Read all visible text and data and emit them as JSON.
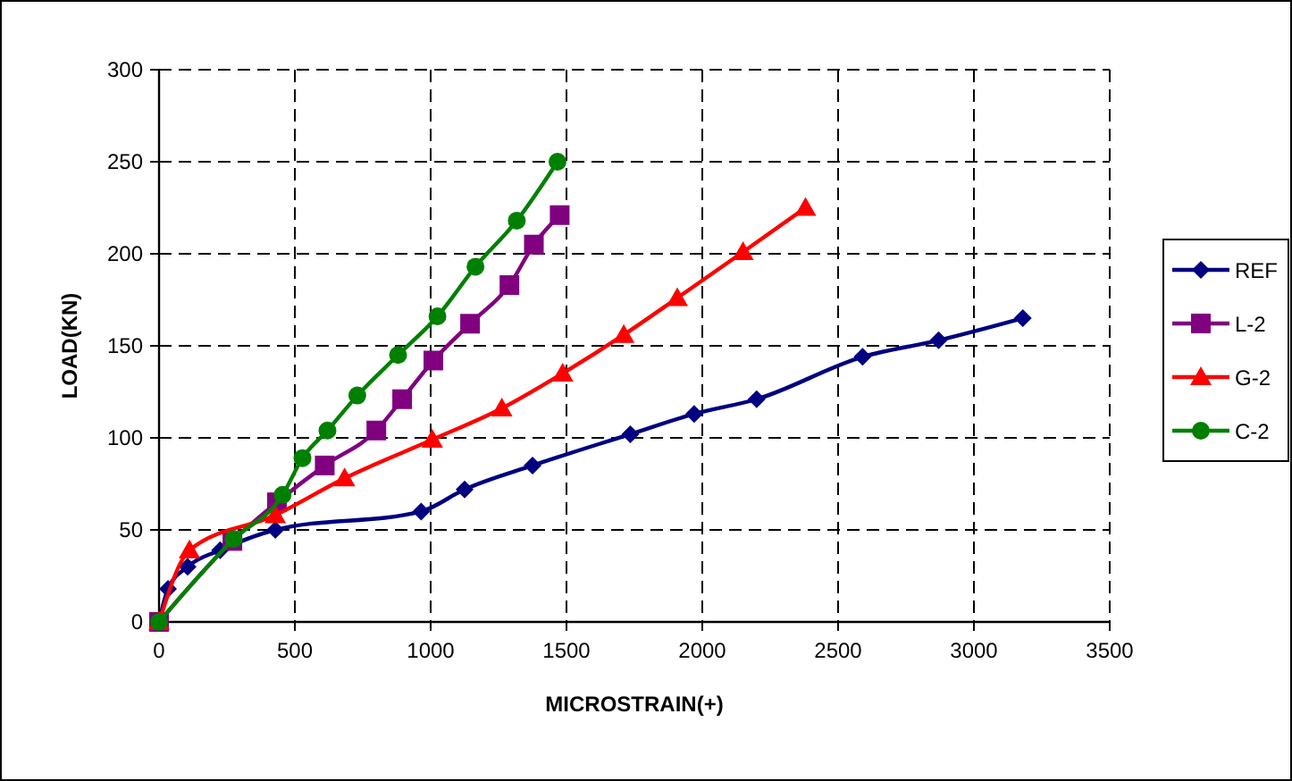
{
  "chart_data": {
    "type": "line",
    "xlabel": "MICROSTRAIN(+)",
    "ylabel": "LOAD(KN)",
    "xlim": [
      0,
      3500
    ],
    "xticks": [
      0,
      500,
      1000,
      1500,
      2000,
      2500,
      3000,
      3500
    ],
    "ylim": [
      0,
      300
    ],
    "yticks": [
      0,
      50,
      100,
      150,
      200,
      250,
      300
    ],
    "grid": true,
    "legend": "right",
    "line_style": "solid",
    "series": [
      {
        "name": "REF",
        "color": "#000080",
        "marker": "diamond",
        "x": [
          0,
          33,
          105,
          225,
          428,
          965,
          1125,
          1375,
          1735,
          1970,
          2200,
          2590,
          2870,
          3180
        ],
        "values": [
          0,
          18,
          30,
          39,
          50,
          60,
          72,
          85,
          102,
          113,
          121,
          144,
          153,
          165
        ]
      },
      {
        "name": "L-2",
        "color": "#800080",
        "marker": "square",
        "x": [
          0,
          270,
          434,
          610,
          800,
          895,
          1010,
          1145,
          1290,
          1380,
          1475
        ],
        "values": [
          0,
          44,
          65,
          85,
          104,
          121,
          142,
          162,
          183,
          205,
          221
        ]
      },
      {
        "name": "G-2",
        "color": "#ff0000",
        "marker": "triangle",
        "x": [
          0,
          112,
          428,
          683,
          1006,
          1262,
          1486,
          1711,
          1908,
          2150,
          2380
        ],
        "values": [
          0,
          39,
          58,
          78,
          99,
          116,
          135,
          156,
          176,
          201,
          225
        ]
      },
      {
        "name": "C-2",
        "color": "#008000",
        "marker": "circle",
        "x": [
          0,
          275,
          455,
          528,
          620,
          730,
          880,
          1025,
          1165,
          1317,
          1467
        ],
        "values": [
          0,
          45,
          69,
          89,
          104,
          123,
          145,
          166,
          193,
          218,
          250
        ]
      }
    ]
  }
}
